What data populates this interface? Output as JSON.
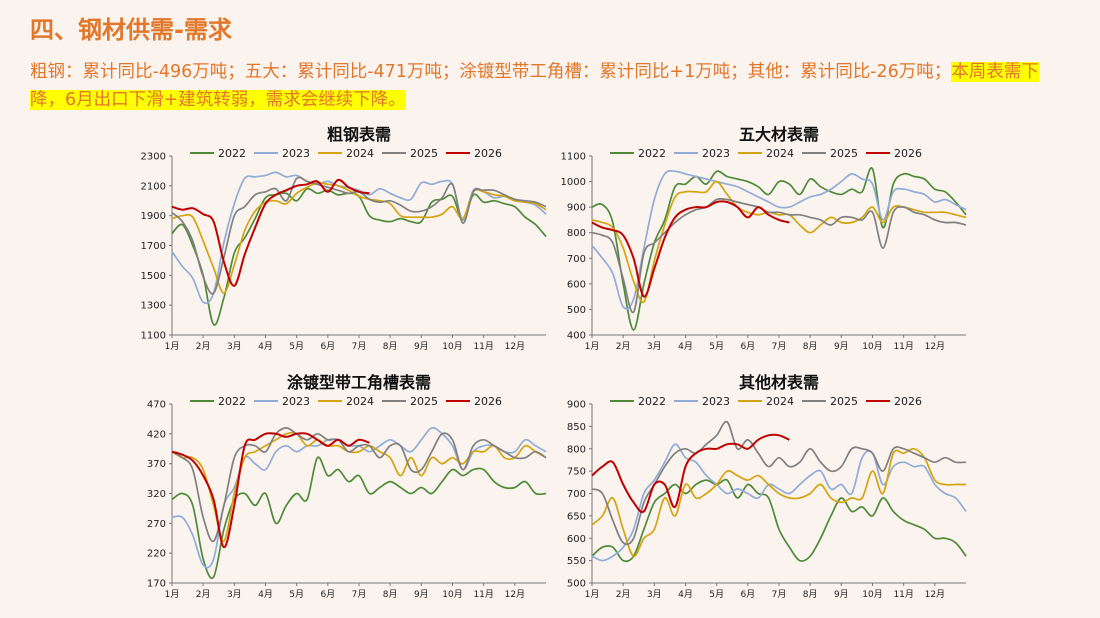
{
  "page": {
    "title": "四、钢材供需-需求",
    "desc_plain": "粗钢：累计同比-496万吨；五大：累计同比-471万吨；涂镀型带工角槽：累计同比+1万吨；其他：累计同比-26万吨；",
    "desc_highlight": "本周表需下降，6月出口下滑+建筑转弱，需求会继续下降。"
  },
  "colors": {
    "accent": "#e2772c",
    "highlight": "#ffff00",
    "background": "#fbf3ee",
    "2022": "#4e8a3a",
    "2023": "#90acd8",
    "2024": "#d3a40f",
    "2025": "#808080",
    "2026": "#c00000"
  },
  "chart_data": [
    {
      "type": "line",
      "title": "粗钢表需",
      "x_tick_labels": [
        "1月",
        "2月",
        "3月",
        "4月",
        "5月",
        "6月",
        "7月",
        "8月",
        "9月",
        "10月",
        "11月",
        "12月"
      ],
      "ylim": [
        1100,
        2300
      ],
      "yticks": [
        1100,
        1300,
        1500,
        1700,
        1900,
        2100,
        2300
      ],
      "legend_position": "top",
      "series": [
        {
          "name": "2022",
          "values": [
            1780,
            1840,
            1700,
            1500,
            1170,
            1350,
            1650,
            1750,
            1880,
            2020,
            2040,
            2050,
            2000,
            2080,
            2050,
            2070,
            2040,
            2050,
            2030,
            1900,
            1870,
            1860,
            1880,
            1860,
            1860,
            1990,
            2010,
            2030,
            1870,
            2040,
            1990,
            2000,
            1980,
            1960,
            1890,
            1840,
            1760
          ]
        },
        {
          "name": "2023",
          "values": [
            1660,
            1560,
            1480,
            1320,
            1380,
            1720,
            1980,
            2150,
            2160,
            2170,
            2190,
            2160,
            2170,
            2130,
            2110,
            2130,
            2100,
            2090,
            2070,
            2040,
            2080,
            2050,
            2020,
            2010,
            2120,
            2110,
            2130,
            2110,
            1870,
            2070,
            2060,
            2020,
            2030,
            2010,
            1990,
            1970,
            1910
          ]
        },
        {
          "name": "2024",
          "values": [
            1880,
            1900,
            1890,
            1730,
            1550,
            1380,
            1570,
            1800,
            1930,
            1990,
            2000,
            1980,
            2050,
            2090,
            2120,
            2110,
            2100,
            2070,
            2030,
            2010,
            2000,
            1980,
            1900,
            1890,
            1890,
            1890,
            1910,
            1960,
            1880,
            2060,
            2060,
            2040,
            2030,
            2000,
            1990,
            1980,
            1940
          ]
        },
        {
          "name": "2025",
          "values": [
            1920,
            1860,
            1730,
            1490,
            1380,
            1620,
            1900,
            1960,
            2040,
            2060,
            2080,
            2000,
            2150,
            2130,
            2110,
            2090,
            2070,
            2050,
            2060,
            2010,
            1990,
            2000,
            1970,
            1930,
            1930,
            1960,
            2020,
            2110,
            1850,
            2060,
            2070,
            2070,
            2040,
            2010,
            2000,
            1990,
            1960
          ]
        },
        {
          "name": "2026",
          "values": [
            1960,
            1940,
            1950,
            1910,
            1860,
            1590,
            1430,
            1640,
            1820,
            1980,
            2040,
            2070,
            2100,
            2110,
            2130,
            2060,
            2140,
            2090,
            2060,
            2050
          ]
        }
      ]
    },
    {
      "type": "line",
      "title": "五大材表需",
      "x_tick_labels": [
        "1月",
        "2月",
        "3月",
        "4月",
        "5月",
        "6月",
        "7月",
        "8月",
        "9月",
        "10月",
        "11月",
        "12月"
      ],
      "ylim": [
        400,
        1100
      ],
      "yticks": [
        400,
        500,
        600,
        700,
        800,
        900,
        1000,
        1100
      ],
      "legend_position": "top",
      "series": [
        {
          "name": "2022",
          "values": [
            900,
            910,
            840,
            600,
            420,
            600,
            760,
            850,
            980,
            990,
            1020,
            990,
            1040,
            1020,
            1010,
            1000,
            980,
            950,
            1000,
            990,
            950,
            1010,
            980,
            960,
            950,
            970,
            960,
            1050,
            820,
            990,
            1030,
            1020,
            1010,
            970,
            960,
            920,
            870
          ]
        },
        {
          "name": "2023",
          "values": [
            750,
            700,
            640,
            510,
            540,
            740,
            930,
            1030,
            1040,
            1030,
            1020,
            1010,
            1000,
            990,
            980,
            960,
            940,
            920,
            900,
            900,
            920,
            940,
            950,
            970,
            1000,
            1030,
            1010,
            990,
            850,
            960,
            970,
            960,
            950,
            920,
            930,
            910,
            890
          ]
        },
        {
          "name": "2024",
          "values": [
            850,
            840,
            820,
            740,
            610,
            530,
            690,
            830,
            940,
            960,
            960,
            960,
            1000,
            950,
            900,
            880,
            870,
            880,
            870,
            870,
            830,
            800,
            830,
            860,
            840,
            840,
            860,
            900,
            840,
            900,
            900,
            890,
            880,
            880,
            880,
            870,
            860
          ]
        },
        {
          "name": "2025",
          "values": [
            800,
            790,
            760,
            620,
            490,
            720,
            760,
            800,
            840,
            870,
            890,
            900,
            930,
            930,
            920,
            910,
            900,
            880,
            880,
            870,
            870,
            860,
            850,
            830,
            860,
            860,
            850,
            880,
            740,
            880,
            900,
            880,
            870,
            850,
            840,
            840,
            830
          ]
        },
        {
          "name": "2026",
          "values": [
            840,
            820,
            810,
            790,
            700,
            550,
            660,
            780,
            860,
            890,
            900,
            900,
            920,
            920,
            900,
            860,
            900,
            870,
            850,
            840
          ]
        }
      ]
    },
    {
      "type": "line",
      "title": "涂镀型带工角槽表需",
      "x_tick_labels": [
        "1月",
        "2月",
        "3月",
        "4月",
        "5月",
        "6月",
        "7月",
        "8月",
        "9月",
        "10月",
        "11月",
        "12月"
      ],
      "ylim": [
        170,
        470
      ],
      "yticks": [
        170,
        220,
        270,
        320,
        370,
        420,
        470
      ],
      "legend_position": "top",
      "series": [
        {
          "name": "2022",
          "values": [
            310,
            320,
            300,
            210,
            180,
            260,
            310,
            320,
            300,
            320,
            270,
            300,
            320,
            310,
            380,
            350,
            360,
            340,
            350,
            320,
            330,
            340,
            330,
            320,
            330,
            320,
            340,
            360,
            350,
            360,
            360,
            340,
            330,
            330,
            340,
            320,
            320
          ]
        },
        {
          "name": "2023",
          "values": [
            280,
            280,
            250,
            200,
            210,
            300,
            330,
            380,
            370,
            360,
            390,
            400,
            390,
            400,
            400,
            410,
            410,
            400,
            400,
            390,
            400,
            410,
            400,
            390,
            410,
            430,
            420,
            400,
            360,
            390,
            400,
            400,
            390,
            390,
            410,
            400,
            390
          ]
        },
        {
          "name": "2024",
          "values": [
            390,
            380,
            380,
            360,
            300,
            240,
            320,
            380,
            390,
            400,
            410,
            420,
            420,
            400,
            410,
            400,
            400,
            390,
            390,
            400,
            390,
            380,
            350,
            380,
            350,
            380,
            370,
            380,
            370,
            390,
            390,
            400,
            380,
            380,
            400,
            390,
            380
          ]
        },
        {
          "name": "2025",
          "values": [
            390,
            380,
            360,
            280,
            240,
            300,
            380,
            400,
            400,
            390,
            420,
            430,
            420,
            410,
            420,
            410,
            410,
            390,
            400,
            400,
            380,
            400,
            400,
            360,
            360,
            390,
            420,
            410,
            360,
            400,
            410,
            400,
            390,
            380,
            380,
            390,
            380
          ]
        },
        {
          "name": "2026",
          "values": [
            390,
            385,
            375,
            350,
            310,
            230,
            300,
            400,
            410,
            420,
            420,
            415,
            420,
            420,
            410,
            400,
            410,
            400,
            410,
            405
          ]
        }
      ]
    },
    {
      "type": "line",
      "title": "其他材表需",
      "x_tick_labels": [
        "1月",
        "2月",
        "3月",
        "4月",
        "5月",
        "6月",
        "7月",
        "8月",
        "9月",
        "10月",
        "11月",
        "12月"
      ],
      "ylim": [
        500,
        900
      ],
      "yticks": [
        500,
        550,
        600,
        650,
        700,
        750,
        800,
        850,
        900
      ],
      "legend_position": "top",
      "series": [
        {
          "name": "2022",
          "values": [
            560,
            580,
            580,
            550,
            560,
            620,
            680,
            700,
            720,
            700,
            720,
            730,
            720,
            730,
            690,
            720,
            700,
            690,
            620,
            580,
            550,
            560,
            600,
            650,
            690,
            660,
            670,
            650,
            690,
            660,
            640,
            630,
            620,
            600,
            600,
            590,
            560
          ]
        },
        {
          "name": "2023",
          "values": [
            560,
            550,
            560,
            580,
            620,
            700,
            730,
            770,
            810,
            780,
            770,
            740,
            720,
            700,
            710,
            700,
            690,
            720,
            710,
            700,
            720,
            740,
            750,
            710,
            720,
            700,
            780,
            790,
            720,
            760,
            770,
            760,
            760,
            720,
            700,
            690,
            660
          ]
        },
        {
          "name": "2024",
          "values": [
            630,
            650,
            690,
            620,
            560,
            600,
            620,
            690,
            650,
            720,
            690,
            700,
            720,
            750,
            740,
            730,
            740,
            720,
            700,
            690,
            690,
            700,
            720,
            690,
            680,
            690,
            690,
            750,
            700,
            790,
            790,
            800,
            780,
            730,
            720,
            720,
            720
          ]
        },
        {
          "name": "2025",
          "values": [
            710,
            700,
            640,
            590,
            600,
            680,
            720,
            760,
            790,
            800,
            790,
            810,
            830,
            860,
            800,
            820,
            790,
            760,
            780,
            760,
            770,
            800,
            770,
            750,
            760,
            800,
            800,
            790,
            750,
            800,
            800,
            790,
            780,
            770,
            780,
            770,
            770
          ]
        },
        {
          "name": "2026",
          "values": [
            740,
            760,
            770,
            720,
            680,
            660,
            720,
            720,
            670,
            760,
            790,
            800,
            800,
            810,
            810,
            800,
            820,
            830,
            830,
            820
          ]
        }
      ]
    }
  ]
}
